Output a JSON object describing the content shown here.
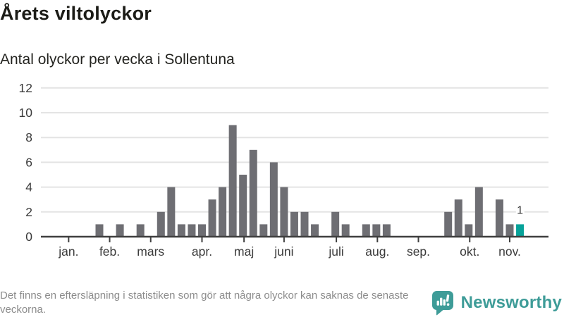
{
  "header": {
    "title": "Årets viltolyckor",
    "subtitle": "Antal olyckor per vecka i Sollentuna"
  },
  "chart_data": {
    "type": "bar",
    "title": "Årets viltolyckor",
    "subtitle": "Antal olyckor per vecka i Sollentuna",
    "x_unit": "week of year (one bar per week, January–November)",
    "values": [
      0,
      0,
      0,
      0,
      0,
      1,
      0,
      1,
      0,
      1,
      0,
      2,
      4,
      1,
      1,
      1,
      3,
      4,
      9,
      5,
      7,
      1,
      6,
      4,
      2,
      2,
      1,
      0,
      2,
      1,
      0,
      1,
      1,
      1,
      0,
      0,
      0,
      0,
      0,
      2,
      3,
      1,
      4,
      0,
      3,
      1,
      1
    ],
    "highlight_index": 46,
    "highlight_label": "1",
    "ylim": [
      0,
      12
    ],
    "yticks": [
      0,
      2,
      4,
      6,
      8,
      10,
      12
    ],
    "grid": true,
    "legend": null,
    "month_ticks": [
      {
        "label": "jan.",
        "week": 3
      },
      {
        "label": "feb.",
        "week": 7
      },
      {
        "label": "mars",
        "week": 11
      },
      {
        "label": "apr.",
        "week": 16
      },
      {
        "label": "maj",
        "week": 20.1
      },
      {
        "label": "juni",
        "week": 24
      },
      {
        "label": "juli",
        "week": 29.1
      },
      {
        "label": "aug.",
        "week": 33.1
      },
      {
        "label": "sep.",
        "week": 37.1
      },
      {
        "label": "okt.",
        "week": 42.1
      },
      {
        "label": "nov.",
        "week": 46
      }
    ],
    "colors": {
      "bar": "#6e6e73",
      "highlight": "#06a299",
      "grid": "#e4e4e4",
      "axis": "#3f3f3f",
      "tick_label": "#3b3b3b"
    }
  },
  "footer": {
    "note": "Det finns en eftersläpning i statistiken som gör att några olyckor kan saknas de senaste veckorna.",
    "brand": {
      "name": "Newsworthy",
      "color": "#3e9c98"
    }
  }
}
